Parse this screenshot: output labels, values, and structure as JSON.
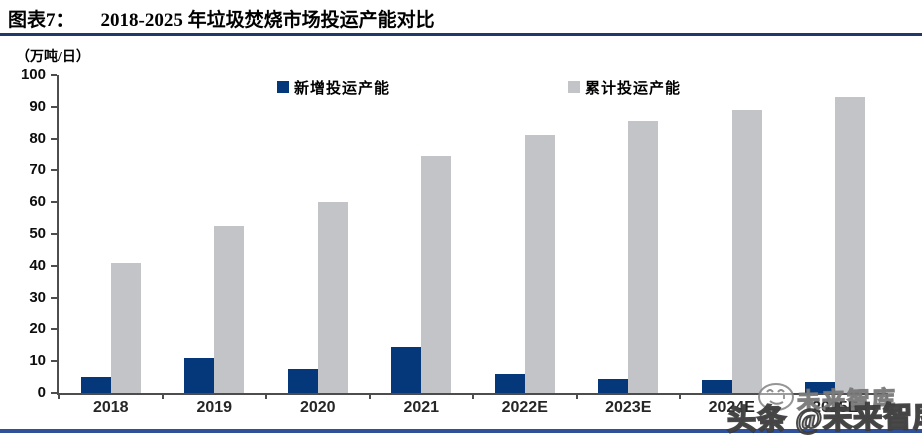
{
  "header": {
    "figure_label": "图表7：",
    "title": "2018-2025 年垃圾焚烧市场投运产能对比"
  },
  "unit_label": "（万吨/日）",
  "chart_data": {
    "type": "bar",
    "title": "2018-2025 年垃圾焚烧市场投运产能对比",
    "unit": "万吨/日",
    "categories": [
      "2018",
      "2019",
      "2020",
      "2021",
      "2022E",
      "2023E",
      "2024E",
      "2025E"
    ],
    "series": [
      {
        "name": "新增投运产能",
        "color": "#04387a",
        "values": [
          5,
          11,
          7.5,
          14.5,
          6,
          4.5,
          4,
          3.5
        ]
      },
      {
        "name": "累计投运产能",
        "color": "#c2c4c8",
        "values": [
          41,
          52.5,
          60,
          74.5,
          81,
          85.5,
          89,
          93
        ]
      }
    ],
    "ylim": [
      0,
      100
    ],
    "ytick_step": 10,
    "grid": false,
    "legend_position": "top-center"
  },
  "watermark": {
    "brand_small": "未来智库",
    "brand_large": "头条 @未来智库",
    "smiley_icon": "smiley-doodle"
  },
  "colors": {
    "header_rule": "#1f3a68",
    "bottom_rule": "#30519a",
    "axis": "#4d4d4d",
    "new_capacity_bar": "#04387a",
    "cumulative_capacity_bar": "#c2c4c8"
  }
}
